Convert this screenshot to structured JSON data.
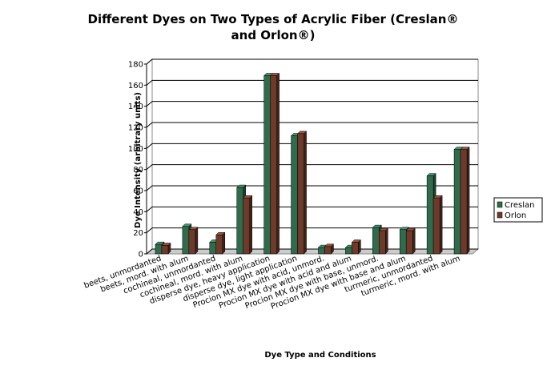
{
  "chart_data": {
    "type": "bar",
    "title": "Different Dyes on Two Types of Acrylic Fiber (Creslan® and Orlon®)",
    "xlabel": "Dye Type and Conditions",
    "ylabel": "Dye Intensity (arbitrary units)",
    "categories": [
      "beets, unmordanted",
      "beets, mord. with alum",
      "cochineal, unmordanted",
      "cochineal, mord. with alum",
      "disperse dye, heavy application",
      "disperse dye, light application",
      "Procion MX dye with acid, unmord.",
      "Procion MX dye with acid and alum",
      "Procion MX dye with base, unmord.",
      "Procion MX dye with base and alum",
      "turmeric, unmordanted",
      "turmeric, mord. with alum"
    ],
    "series": [
      {
        "name": "Creslan",
        "color": "#2f6b4c",
        "values": [
          9,
          26,
          11,
          63,
          169,
          112,
          6,
          6,
          25,
          23,
          74,
          99
        ]
      },
      {
        "name": "Orlon",
        "color": "#6e3b2b",
        "values": [
          8,
          23,
          18,
          53,
          169,
          114,
          7,
          11,
          22,
          22,
          53,
          99
        ]
      }
    ],
    "ylim": [
      0,
      180
    ],
    "yticks": [
      0,
      20,
      40,
      60,
      80,
      100,
      120,
      140,
      160,
      180
    ],
    "grid": true,
    "legend": "right"
  }
}
